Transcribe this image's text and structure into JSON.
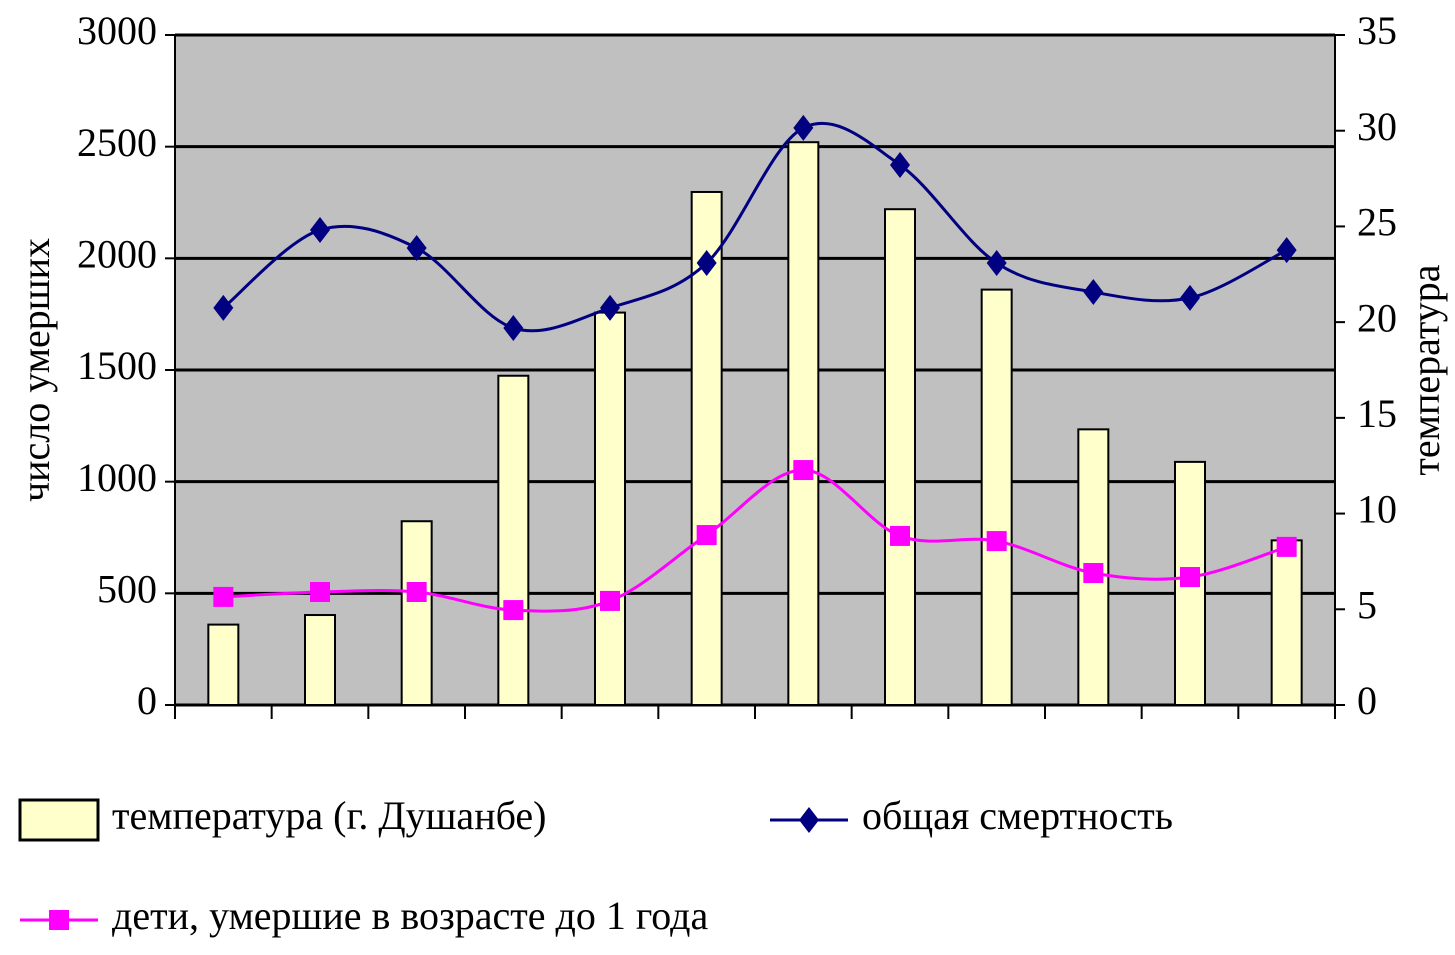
{
  "chart_data": {
    "type": "bar-line",
    "y_label": "число умерших",
    "y2_label": "температура",
    "categories": [
      null,
      null,
      null,
      null,
      null,
      null,
      null,
      null,
      null,
      null,
      null,
      null
    ],
    "series": [
      {
        "name": "температура (г. Душанбе)",
        "kind": "bar",
        "axis": "y2",
        "color": "#ffffcc",
        "values": [
          4.2,
          4.7,
          9.6,
          17.2,
          20.5,
          26.8,
          29.4,
          25.9,
          21.7,
          14.4,
          12.7,
          8.6
        ]
      },
      {
        "name": "общая смертность",
        "kind": "line",
        "axis": "y",
        "color": "#000080",
        "marker": "diamond",
        "values": [
          1778,
          2127,
          2046,
          1688,
          1778,
          1979,
          2584,
          2418,
          1979,
          1849,
          1823,
          2037
        ]
      },
      {
        "name": "дети, умершие в возрасте до 1 года",
        "kind": "line",
        "axis": "y",
        "color": "#ff00ff",
        "marker": "square",
        "values": [
          484,
          506,
          506,
          425,
          466,
          761,
          1052,
          757,
          734,
          591,
          573,
          708
        ]
      }
    ],
    "ylim": [
      0,
      3000
    ],
    "yticks": [
      0,
      500,
      1000,
      1500,
      2000,
      2500,
      3000
    ],
    "y2lim": [
      0,
      35
    ],
    "y2ticks": [
      0,
      5,
      10,
      15,
      20,
      25,
      30,
      35
    ],
    "grid": true,
    "plot_background": "#c0c0c0",
    "legend": "bottom"
  }
}
